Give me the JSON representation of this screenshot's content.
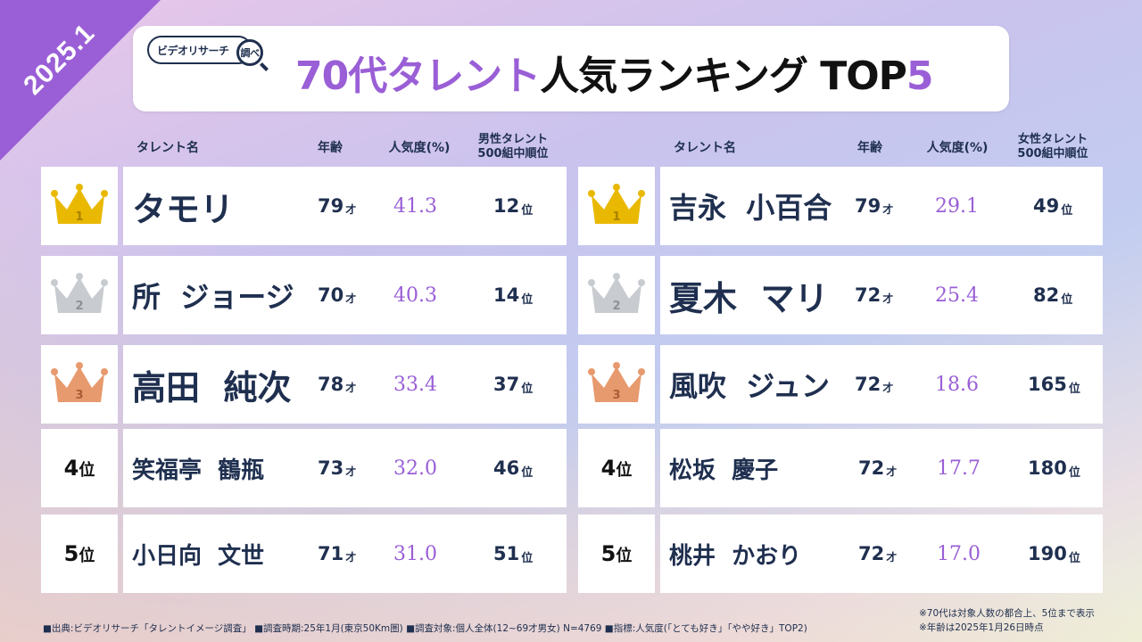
{
  "badge": "2025.1",
  "logo": {
    "text": "ビデオリサーチ",
    "mark": "調べ"
  },
  "title": {
    "accent": "70代タレント",
    "main": "人気ランキング TOP",
    "num": "5"
  },
  "male": {
    "headers": {
      "name": "タレント名",
      "age": "年齢",
      "pop": "人気度(%)",
      "order1": "男性タレント",
      "order2": "500組中順位"
    },
    "rows": [
      {
        "rank": "1",
        "name": "タモリ",
        "age": "79",
        "age_unit": "才",
        "pop": "41.3",
        "order": "12",
        "order_unit": "位"
      },
      {
        "rank": "2",
        "name": "所  ジョージ",
        "age": "70",
        "age_unit": "才",
        "pop": "40.3",
        "order": "14",
        "order_unit": "位"
      },
      {
        "rank": "3",
        "name": "高田  純次",
        "age": "78",
        "age_unit": "才",
        "pop": "33.4",
        "order": "37",
        "order_unit": "位"
      },
      {
        "rank": "4",
        "rank_unit": "位",
        "name": "笑福亭  鶴瓶",
        "age": "73",
        "age_unit": "才",
        "pop": "32.0",
        "order": "46",
        "order_unit": "位"
      },
      {
        "rank": "5",
        "rank_unit": "位",
        "name": "小日向  文世",
        "age": "71",
        "age_unit": "才",
        "pop": "31.0",
        "order": "51",
        "order_unit": "位"
      }
    ]
  },
  "female": {
    "headers": {
      "name": "タレント名",
      "age": "年齢",
      "pop": "人気度(%)",
      "order1": "女性タレント",
      "order2": "500組中順位"
    },
    "rows": [
      {
        "rank": "1",
        "name": "吉永  小百合",
        "age": "79",
        "age_unit": "才",
        "pop": "29.1",
        "order": "49",
        "order_unit": "位"
      },
      {
        "rank": "2",
        "name": "夏木  マリ",
        "age": "72",
        "age_unit": "才",
        "pop": "25.4",
        "order": "82",
        "order_unit": "位"
      },
      {
        "rank": "3",
        "name": "風吹  ジュン",
        "age": "72",
        "age_unit": "才",
        "pop": "18.6",
        "order": "165",
        "order_unit": "位"
      },
      {
        "rank": "4",
        "rank_unit": "位",
        "name": "松坂  慶子",
        "age": "72",
        "age_unit": "才",
        "pop": "17.7",
        "order": "180",
        "order_unit": "位"
      },
      {
        "rank": "5",
        "rank_unit": "位",
        "name": "桃井  かおり",
        "age": "72",
        "age_unit": "才",
        "pop": "17.0",
        "order": "190",
        "order_unit": "位"
      }
    ]
  },
  "colors": {
    "gold": "#e9b800",
    "silver": "#c8cbd0",
    "bronze": "#e79a6e",
    "accent": "#9a5fd6"
  },
  "footer": "■出典:ビデオリサーチ「タレントイメージ調査」 ■調査時期:25年1月(東京50Km圏) ■調査対象:個人全体(12~69才男女) N=4769 ■指標:人気度(「とても好き」「やや好き」TOP2)",
  "notes": [
    "※70代は対象人数の都合上、5位まで表示",
    "※年齢は2025年1月26日時点"
  ]
}
